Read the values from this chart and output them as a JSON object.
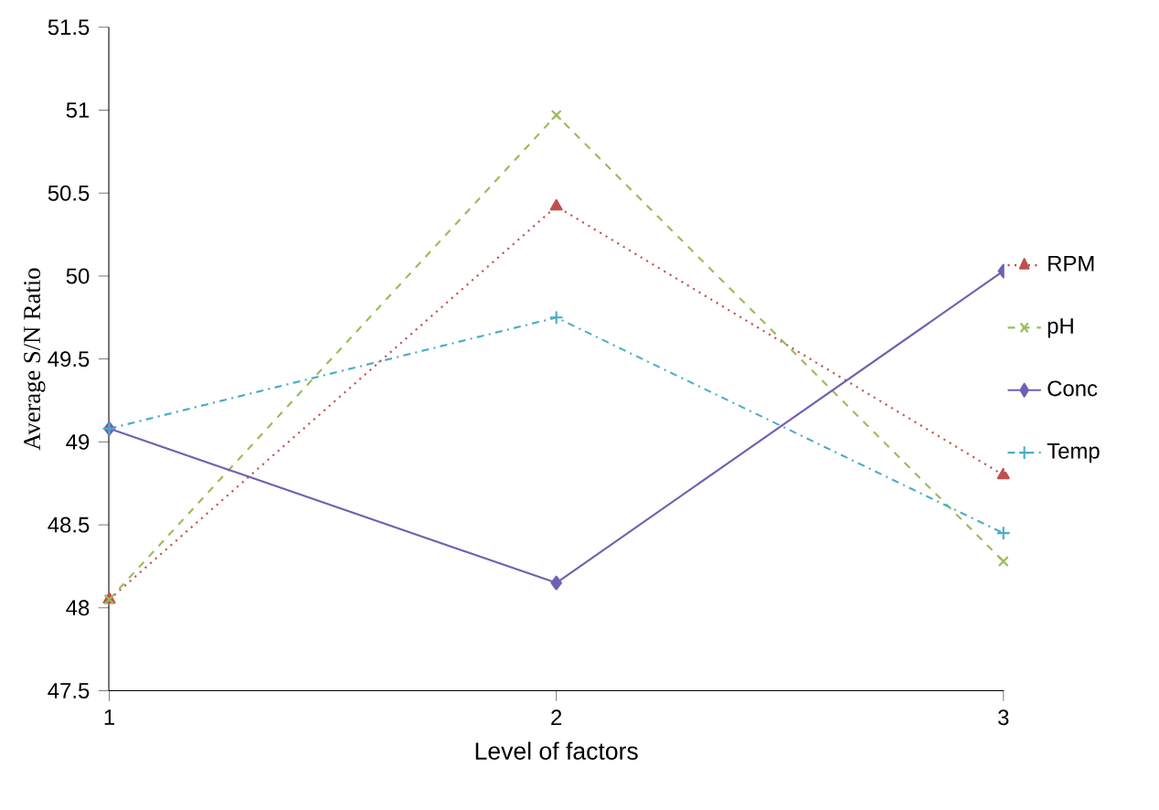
{
  "chart_data": {
    "type": "line",
    "xlabel": "Level of factors",
    "ylabel": "Average S/N Ratio",
    "categories": [
      "1",
      "2",
      "3"
    ],
    "series": [
      {
        "name": "RPM",
        "color": "#c0504d",
        "values": [
          48.05,
          50.42,
          48.8
        ],
        "marker": "triangle",
        "line_style": "dotted"
      },
      {
        "name": "pH",
        "color": "#9bbb59",
        "values": [
          48.05,
          50.97,
          48.28
        ],
        "marker": "cross",
        "line_style": "dashed"
      },
      {
        "name": "Conc",
        "color": "#7060b0",
        "values": [
          49.08,
          48.15,
          50.03
        ],
        "marker": "diamond",
        "line_style": "solid"
      },
      {
        "name": "Temp",
        "color": "#4bacc6",
        "values": [
          49.08,
          49.75,
          48.45
        ],
        "marker": "plus",
        "line_style": "dashdot"
      }
    ],
    "ylim": [
      47.5,
      51.5
    ],
    "yticks": [
      47.5,
      48,
      48.5,
      49,
      49.5,
      50,
      50.5,
      51,
      51.5
    ],
    "grid": false,
    "legend": "right"
  }
}
